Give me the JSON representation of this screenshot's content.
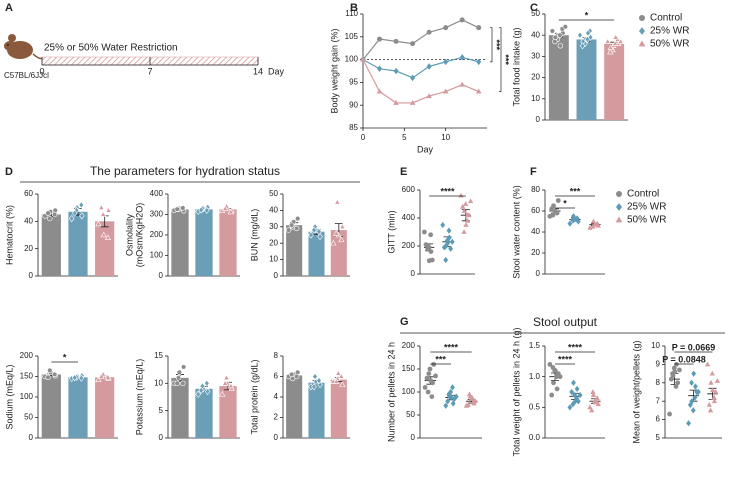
{
  "figure": {
    "panels": [
      "A",
      "B",
      "C",
      "D",
      "E",
      "F",
      "G"
    ],
    "sections": [
      "The parameters for hydration status",
      "Stool output"
    ],
    "schematic": {
      "label": "25% or 50% Water Restriction",
      "strain": "C57BL/6JJcl",
      "ticks": [
        0,
        7,
        14
      ],
      "unit": "Day",
      "range": [
        0,
        14
      ]
    }
  },
  "chart_data": [
    {
      "type": "line",
      "ylabel": "Body weight gain (%)",
      "xlabel": "Day",
      "x": [
        0,
        2,
        4,
        6,
        8,
        10,
        12,
        14
      ],
      "xlim": [
        0,
        15
      ],
      "xticks": [
        0,
        5,
        10
      ],
      "ylim": [
        85,
        110
      ],
      "yticks": [
        85,
        90,
        95,
        100,
        105,
        110
      ],
      "baseline": 100,
      "series": [
        {
          "color": "#8c8c8c",
          "marker": "circle",
          "values": [
            100,
            104.5,
            104,
            103.5,
            106,
            107,
            108.7,
            107
          ]
        },
        {
          "color": "#5b9bb5",
          "marker": "diamond",
          "values": [
            100,
            98,
            97.5,
            96,
            98.5,
            99.5,
            100.5,
            99.5
          ]
        },
        {
          "color": "#d49a9e",
          "marker": "triangle",
          "values": [
            100,
            93,
            90.5,
            90.5,
            92,
            93,
            94.5,
            93
          ]
        }
      ],
      "brackets": [
        {
          "text": "***",
          "pair": [
            0,
            1
          ]
        },
        {
          "text": "***",
          "pair": [
            0,
            2
          ]
        }
      ]
    },
    {
      "type": "bar",
      "ylabel": [
        "Total food intake (g)"
      ],
      "ylim": [
        0,
        50
      ],
      "yticks": [
        0,
        10,
        20,
        30,
        40,
        50
      ],
      "legend": "right",
      "series": [
        {
          "name": "Control",
          "color": "#8c8c8c",
          "marker": "circle",
          "values": [
            40
          ],
          "errors": [
            0.9
          ],
          "points": [
            42,
            40,
            38,
            41,
            43,
            39,
            37,
            35,
            40,
            44
          ]
        },
        {
          "name": "25% WR",
          "color": "#6b9fb8",
          "marker": "diamond",
          "values": [
            38
          ],
          "errors": [
            0.8
          ],
          "points": [
            40,
            38,
            36,
            39,
            42,
            37,
            35,
            41,
            38
          ]
        },
        {
          "name": "50% WR",
          "color": "#d49a9e",
          "marker": "triangle",
          "values": [
            36
          ],
          "errors": [
            0.7
          ],
          "points": [
            37,
            35,
            33,
            36,
            38,
            34,
            32,
            39,
            36,
            37
          ]
        }
      ],
      "brackets": [
        {
          "text": "*",
          "pair": [
            0,
            2
          ]
        }
      ]
    },
    {
      "type": "bar",
      "ylabel": [
        "Hematocrit (%)"
      ],
      "ylim": [
        0,
        60
      ],
      "yticks": [
        0,
        20,
        40,
        60
      ],
      "series": [
        {
          "color": "#8c8c8c",
          "marker": "circle",
          "values": [
            45
          ],
          "errors": [
            1.5
          ],
          "points": [
            44,
            47,
            42,
            48,
            45,
            46
          ]
        },
        {
          "color": "#6b9fb8",
          "marker": "diamond",
          "values": [
            47
          ],
          "errors": [
            2.5
          ],
          "points": [
            42,
            50,
            48,
            44,
            52,
            46
          ]
        },
        {
          "color": "#d49a9e",
          "marker": "triangle",
          "values": [
            40
          ],
          "errors": [
            4
          ],
          "points": [
            38,
            30,
            45,
            48,
            28,
            50
          ]
        }
      ]
    },
    {
      "type": "bar",
      "ylabel": [
        "Osmolality",
        "(mOsm/KgH2O)"
      ],
      "ylim": [
        0,
        400
      ],
      "yticks": [
        0,
        100,
        200,
        300,
        400
      ],
      "series": [
        {
          "color": "#8c8c8c",
          "marker": "circle",
          "values": [
            325
          ],
          "errors": [
            4
          ],
          "points": [
            320,
            330,
            325,
            318,
            332,
            326
          ]
        },
        {
          "color": "#6b9fb8",
          "marker": "diamond",
          "values": [
            325
          ],
          "errors": [
            5
          ],
          "points": [
            315,
            330,
            328,
            335,
            320,
            322
          ]
        },
        {
          "color": "#d49a9e",
          "marker": "triangle",
          "values": [
            325
          ],
          "errors": [
            5
          ],
          "points": [
            318,
            330,
            340,
            320,
            312,
            328
          ]
        }
      ]
    },
    {
      "type": "bar",
      "ylabel": [
        "BUN (mg/dL)"
      ],
      "ylim": [
        0,
        50
      ],
      "yticks": [
        0,
        10,
        20,
        30,
        40,
        50
      ],
      "series": [
        {
          "color": "#8c8c8c",
          "marker": "circle",
          "values": [
            31
          ],
          "errors": [
            1.5
          ],
          "points": [
            28,
            33,
            30,
            35,
            29,
            31
          ]
        },
        {
          "color": "#6b9fb8",
          "marker": "diamond",
          "values": [
            27
          ],
          "errors": [
            1.5
          ],
          "points": [
            25,
            28,
            30,
            24,
            27,
            28
          ]
        },
        {
          "color": "#d49a9e",
          "marker": "triangle",
          "values": [
            28
          ],
          "errors": [
            4
          ],
          "points": [
            20,
            25,
            45,
            30,
            22,
            26
          ]
        }
      ]
    },
    {
      "type": "bar",
      "ylabel": [
        "Sodium (mEq/L)"
      ],
      "ylim": [
        0,
        200
      ],
      "yticks": [
        0,
        50,
        100,
        150,
        200
      ],
      "series": [
        {
          "color": "#8c8c8c",
          "marker": "circle",
          "values": [
            155
          ],
          "errors": [
            3
          ],
          "points": [
            150,
            160,
            165,
            152,
            155,
            148
          ]
        },
        {
          "color": "#6b9fb8",
          "marker": "diamond",
          "values": [
            148
          ],
          "errors": [
            2
          ],
          "points": [
            145,
            150,
            148,
            152,
            146,
            147
          ]
        },
        {
          "color": "#d49a9e",
          "marker": "triangle",
          "values": [
            148
          ],
          "errors": [
            3
          ],
          "points": [
            142,
            150,
            155,
            145,
            148,
            150
          ]
        }
      ],
      "brackets": [
        {
          "text": "*",
          "pair": [
            0,
            1
          ]
        }
      ]
    },
    {
      "type": "bar",
      "ylabel": [
        "Potassium (mEq/L)"
      ],
      "ylim": [
        0,
        15
      ],
      "yticks": [
        0,
        5,
        10,
        15
      ],
      "series": [
        {
          "color": "#8c8c8c",
          "marker": "circle",
          "values": [
            11
          ],
          "errors": [
            0.6
          ],
          "points": [
            10,
            12,
            11,
            13,
            10,
            10
          ]
        },
        {
          "color": "#6b9fb8",
          "marker": "diamond",
          "values": [
            9
          ],
          "errors": [
            0.4
          ],
          "points": [
            8,
            9,
            9.5,
            8.5,
            10,
            8.7
          ]
        },
        {
          "color": "#d49a9e",
          "marker": "triangle",
          "values": [
            9.5
          ],
          "errors": [
            0.7
          ],
          "points": [
            8,
            10,
            11,
            9,
            9.5,
            10
          ]
        }
      ]
    },
    {
      "type": "bar",
      "ylabel": [
        "Total protein (g/dL)"
      ],
      "ylim": [
        0,
        8
      ],
      "yticks": [
        0,
        2,
        4,
        6,
        8
      ],
      "series": [
        {
          "color": "#8c8c8c",
          "marker": "circle",
          "values": [
            6.1
          ],
          "errors": [
            0.1
          ],
          "points": [
            6,
            6.2,
            5.8,
            6.4,
            6,
            6.2
          ]
        },
        {
          "color": "#6b9fb8",
          "marker": "diamond",
          "values": [
            5.4
          ],
          "errors": [
            0.2
          ],
          "points": [
            5,
            5.5,
            6,
            5.2,
            5.6,
            5
          ]
        },
        {
          "color": "#d49a9e",
          "marker": "triangle",
          "values": [
            5.7
          ],
          "errors": [
            0.2
          ],
          "points": [
            5.5,
            6.3,
            5.8,
            5.2,
            6,
            5.5
          ]
        }
      ]
    },
    {
      "type": "strip",
      "ylabel": [
        "GITT (min)"
      ],
      "ylim": [
        0,
        600
      ],
      "yticks": [
        0,
        200,
        400,
        600
      ],
      "series": [
        {
          "color": "#8c8c8c",
          "marker": "circle",
          "values": [
            190
          ],
          "errors": [
            25
          ],
          "points": [
            300,
            190,
            180,
            100,
            160,
            200,
            210,
            280,
            95
          ]
        },
        {
          "color": "#5b9bb5",
          "marker": "diamond",
          "values": [
            230
          ],
          "errors": [
            35
          ],
          "points": [
            350,
            240,
            200,
            180,
            260,
            100,
            190,
            310,
            220,
            230
          ]
        },
        {
          "color": "#d49a9e",
          "marker": "triangle",
          "values": [
            420
          ],
          "errors": [
            40
          ],
          "points": [
            560,
            500,
            450,
            420,
            380,
            300,
            480,
            420,
            350,
            520
          ]
        }
      ],
      "brackets": [
        {
          "text": "****",
          "pair": [
            0,
            2
          ]
        }
      ]
    },
    {
      "type": "strip",
      "ylabel": [
        "Stool water content (%)"
      ],
      "ylim": [
        0,
        80
      ],
      "yticks": [
        0,
        20,
        40,
        60,
        80
      ],
      "legend": "right",
      "series": [
        {
          "name": "Control",
          "color": "#8c8c8c",
          "marker": "circle",
          "values": [
            60
          ],
          "errors": [
            2
          ],
          "points": [
            55,
            60,
            65,
            70,
            58,
            56,
            62
          ]
        },
        {
          "name": "25% WR",
          "color": "#5b9bb5",
          "marker": "diamond",
          "values": [
            52
          ],
          "errors": [
            1.5
          ],
          "points": [
            48,
            52,
            55,
            50,
            53,
            51
          ]
        },
        {
          "name": "50% WR",
          "color": "#d49a9e",
          "marker": "triangle",
          "values": [
            47
          ],
          "errors": [
            1
          ],
          "points": [
            44,
            47,
            50,
            46,
            48,
            45
          ]
        }
      ],
      "brackets": [
        {
          "text": "*",
          "pair": [
            0,
            1
          ]
        },
        {
          "text": "***",
          "pair": [
            0,
            2
          ]
        }
      ]
    },
    {
      "type": "strip",
      "ylabel": [
        "Number of pellets in 24 h"
      ],
      "ylim": [
        0,
        200
      ],
      "yticks": [
        0,
        50,
        100,
        150,
        200
      ],
      "series": [
        {
          "color": "#8c8c8c",
          "marker": "circle",
          "values": [
            125
          ],
          "errors": [
            8
          ],
          "points": [
            110,
            150,
            140,
            160,
            120,
            100,
            130,
            90,
            125,
            135
          ]
        },
        {
          "color": "#5b9bb5",
          "marker": "diamond",
          "values": [
            88
          ],
          "errors": [
            5
          ],
          "points": [
            70,
            100,
            90,
            85,
            75,
            95,
            80,
            110,
            88,
            90
          ]
        },
        {
          "color": "#d49a9e",
          "marker": "triangle",
          "values": [
            80
          ],
          "errors": [
            4
          ],
          "points": [
            70,
            85,
            90,
            80,
            75,
            95,
            72,
            78,
            88
          ]
        }
      ],
      "brackets": [
        {
          "text": "***",
          "pair": [
            0,
            1
          ]
        },
        {
          "text": "****",
          "pair": [
            0,
            2
          ]
        }
      ]
    },
    {
      "type": "strip",
      "ylabel": [
        "Total weight of pellets in 24 h (g)"
      ],
      "ylim": [
        0,
        1.5
      ],
      "yticks": [
        {
          "value": 0,
          "label": "0.0"
        },
        0.5,
        {
          "value": 1,
          "label": "1.0"
        },
        1.5
      ],
      "series": [
        {
          "color": "#8c8c8c",
          "marker": "circle",
          "values": [
            1.0
          ],
          "errors": [
            0.06
          ],
          "points": [
            1.2,
            1.1,
            0.9,
            1.05,
            0.8,
            1.15,
            0.7,
            1.0,
            1.1,
            1.0
          ]
        },
        {
          "color": "#5b9bb5",
          "marker": "diamond",
          "values": [
            0.68
          ],
          "errors": [
            0.05
          ],
          "points": [
            0.5,
            0.7,
            0.9,
            0.6,
            0.8,
            0.55,
            0.75,
            0.65,
            0.6,
            0.7
          ]
        },
        {
          "color": "#d49a9e",
          "marker": "triangle",
          "values": [
            0.6
          ],
          "errors": [
            0.04
          ],
          "points": [
            0.5,
            0.6,
            0.7,
            0.55,
            0.65,
            0.75,
            0.45,
            0.6,
            0.58
          ]
        }
      ],
      "brackets": [
        {
          "text": "****",
          "pair": [
            0,
            1
          ]
        },
        {
          "text": "****",
          "pair": [
            0,
            2
          ]
        }
      ]
    },
    {
      "type": "strip",
      "ylabel": [
        "Mean of weight/pellets (g)"
      ],
      "ylim": [
        5,
        10
      ],
      "yticks": [
        5,
        6,
        7,
        8,
        9,
        10
      ],
      "series": [
        {
          "color": "#8c8c8c",
          "marker": "circle",
          "values": [
            8.2
          ],
          "errors": [
            0.3
          ],
          "points": [
            6.3,
            8.8,
            8.4,
            8,
            9,
            8.5,
            8.2,
            7.8,
            8.6,
            8.7
          ]
        },
        {
          "color": "#5b9bb5",
          "marker": "diamond",
          "values": [
            7.3
          ],
          "errors": [
            0.3
          ],
          "points": [
            5.8,
            6.5,
            7,
            7.5,
            7.8,
            8,
            6.8,
            7.2,
            8.5,
            7.5
          ]
        },
        {
          "color": "#d49a9e",
          "marker": "triangle",
          "values": [
            7.4
          ],
          "errors": [
            0.3
          ],
          "points": [
            9,
            8.5,
            8,
            7.5,
            7,
            6.5,
            6.8,
            7.2,
            7.6,
            8.1
          ]
        }
      ],
      "brackets": [
        {
          "text": "P = 0.0848",
          "pair": [
            0,
            1
          ]
        },
        {
          "text": "P = 0.0669",
          "pair": [
            0,
            2
          ]
        }
      ]
    }
  ]
}
